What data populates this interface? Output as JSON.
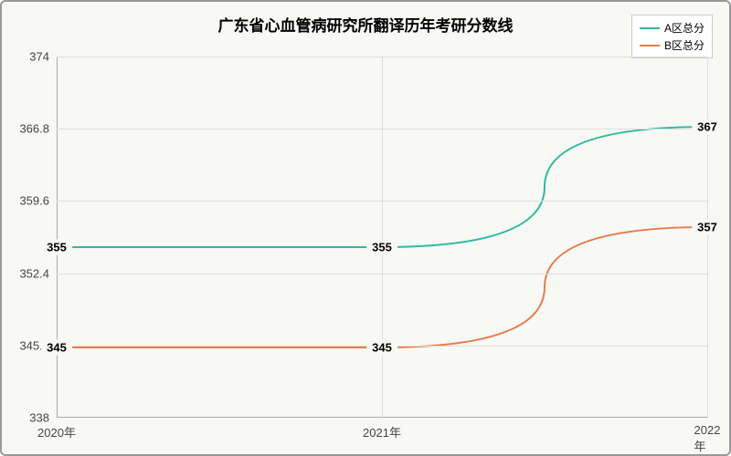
{
  "chart": {
    "type": "line",
    "title": "广东省心血管病研究所翻译历年考研分数线",
    "title_fontsize": 17,
    "background_color": "#f8f8f5",
    "border_color": "#999999",
    "grid_color": "#dddddd",
    "ylim": [
      338,
      374
    ],
    "y_ticks": [
      338,
      345.2,
      352.4,
      359.6,
      366.8,
      374
    ],
    "x_categories": [
      "2020年",
      "2021年",
      "2022年"
    ],
    "series": [
      {
        "name": "A区总分",
        "color": "#2fb8a0",
        "values": [
          355,
          355,
          367
        ],
        "line_width": 2
      },
      {
        "name": "B区总分",
        "color": "#e87c4a",
        "values": [
          345,
          345,
          357
        ],
        "line_width": 2
      }
    ],
    "label_fontsize": 13,
    "tick_fontsize": 13,
    "legend_fontsize": 12,
    "legend_position": "top-right"
  }
}
